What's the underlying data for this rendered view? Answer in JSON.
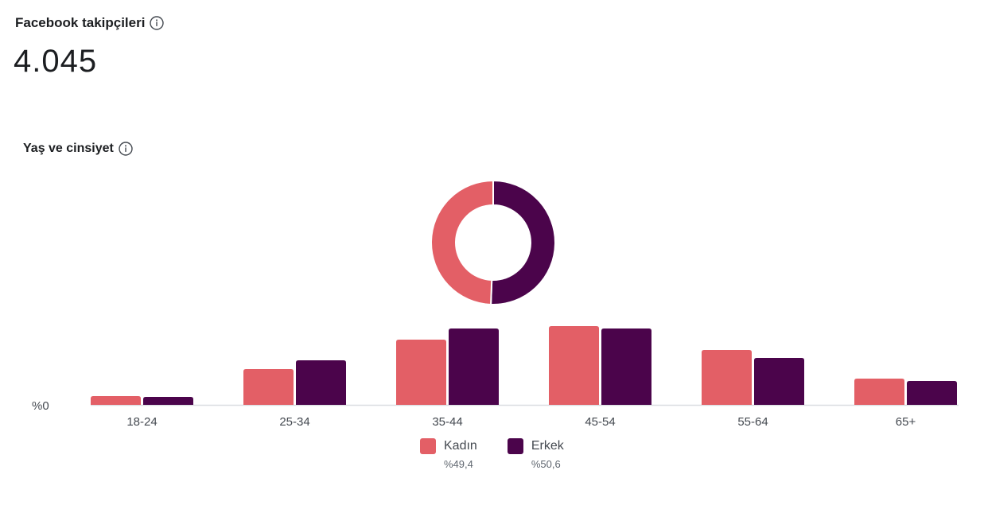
{
  "header": {
    "title": "Facebook takipçileri",
    "followers": "4.045"
  },
  "section": {
    "title": "Yaş ve cinsiyet"
  },
  "icons": {
    "info": "info-circle-icon"
  },
  "colors": {
    "female": "#e35f66",
    "male": "#4b044b",
    "axis": "#dadde1",
    "text": "#1c1e21"
  },
  "chart_data": [
    {
      "type": "pie",
      "variant": "donut",
      "series": [
        {
          "name": "Kadın",
          "value": 49.4
        },
        {
          "name": "Erkek",
          "value": 50.6
        }
      ]
    },
    {
      "type": "bar",
      "categories": [
        "18-24",
        "25-34",
        "35-44",
        "45-54",
        "55-64",
        "65+"
      ],
      "series": [
        {
          "name": "Kadın",
          "values": [
            1.1,
            4.5,
            8.2,
            9.9,
            6.9,
            3.3
          ]
        },
        {
          "name": "Erkek",
          "values": [
            1.0,
            5.6,
            9.6,
            9.6,
            5.9,
            3.0
          ]
        }
      ],
      "y_tick_label": "%0",
      "ylim": [
        0,
        10
      ],
      "grid": false,
      "legend": "bottom-center"
    }
  ],
  "legend": [
    {
      "label": "Kadın",
      "pct": "%49,4"
    },
    {
      "label": "Erkek",
      "pct": "%50,6"
    }
  ]
}
